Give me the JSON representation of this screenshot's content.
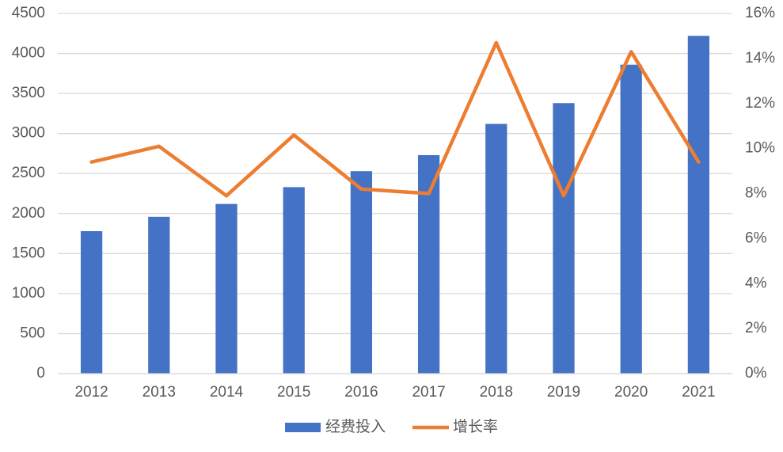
{
  "chart_data": {
    "type": "bar",
    "categories": [
      "2012",
      "2013",
      "2014",
      "2015",
      "2016",
      "2017",
      "2018",
      "2019",
      "2020",
      "2021"
    ],
    "series": [
      {
        "name": "经费投入",
        "type": "bar",
        "color": "#4472c4",
        "axis": "y",
        "values": [
          1780,
          1960,
          2120,
          2330,
          2530,
          2730,
          3120,
          3380,
          3860,
          4220
        ]
      },
      {
        "name": "增长率",
        "type": "line",
        "color": "#ed7d31",
        "axis": "y2",
        "values": [
          9.4,
          10.1,
          7.9,
          10.6,
          8.2,
          8.0,
          14.7,
          7.9,
          14.3,
          9.4
        ]
      }
    ],
    "ylim": [
      0,
      4500
    ],
    "yticks": [
      0,
      500,
      1000,
      1500,
      2000,
      2500,
      3000,
      3500,
      4000,
      4500
    ],
    "y2lim": [
      0,
      16
    ],
    "y2ticks": [
      {
        "value": 0,
        "label": "0%"
      },
      {
        "value": 2,
        "label": "2%"
      },
      {
        "value": 4,
        "label": "4%"
      },
      {
        "value": 6,
        "label": "6%"
      },
      {
        "value": 8,
        "label": "8%"
      },
      {
        "value": 10,
        "label": "10%"
      },
      {
        "value": 12,
        "label": "12%"
      },
      {
        "value": 14,
        "label": "14%"
      },
      {
        "value": 16,
        "label": "16%"
      }
    ],
    "grid": true,
    "legend": "bottom"
  }
}
